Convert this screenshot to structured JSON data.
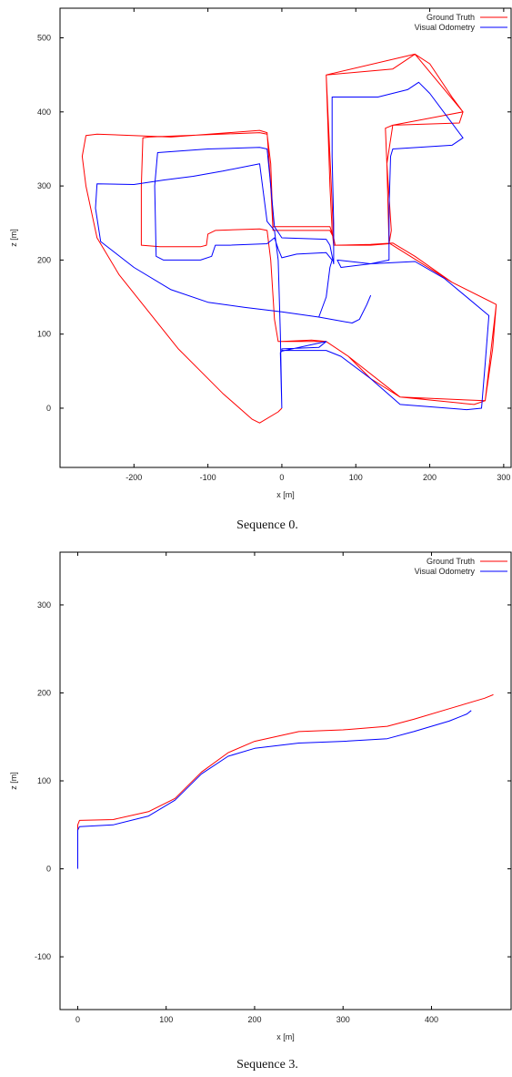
{
  "chart_data": [
    {
      "type": "line",
      "xlabel": "x [m]",
      "ylabel": "z [m]",
      "xlim": [
        -300,
        310
      ],
      "ylim": [
        -80,
        540
      ],
      "xticks": [
        -200,
        -100,
        0,
        100,
        200,
        300
      ],
      "yticks": [
        0,
        100,
        200,
        300,
        400,
        500
      ],
      "legend_position": "top-right",
      "caption": "Sequence 0.",
      "series": [
        {
          "name": "Ground Truth",
          "color": "#ff0000",
          "points": [
            [
              0,
              0
            ],
            [
              -5,
              -5
            ],
            [
              -30,
              -20
            ],
            [
              -40,
              -15
            ],
            [
              -80,
              20
            ],
            [
              -140,
              80
            ],
            [
              -180,
              130
            ],
            [
              -220,
              180
            ],
            [
              -250,
              230
            ],
            [
              -265,
              300
            ],
            [
              -270,
              340
            ],
            [
              -265,
              368
            ],
            [
              -250,
              370
            ],
            [
              -150,
              366
            ],
            [
              -30,
              375
            ],
            [
              -20,
              372
            ],
            [
              -15,
              300
            ],
            [
              -12,
              240
            ],
            [
              0,
              240
            ],
            [
              60,
              240
            ],
            [
              65,
              240
            ],
            [
              70,
              230
            ],
            [
              72,
              220
            ],
            [
              120,
              221
            ],
            [
              150,
              223
            ],
            [
              180,
              205
            ],
            [
              230,
              170
            ],
            [
              280,
              145
            ],
            [
              290,
              140
            ],
            [
              285,
              80
            ],
            [
              275,
              10
            ],
            [
              260,
              5
            ],
            [
              160,
              15
            ],
            [
              120,
              40
            ],
            [
              90,
              70
            ],
            [
              60,
              90
            ],
            [
              40,
              92
            ],
            [
              0,
              90
            ],
            [
              -5,
              90
            ],
            [
              -10,
              120
            ],
            [
              -15,
              200
            ],
            [
              -20,
              240
            ],
            [
              -30,
              242
            ],
            [
              -90,
              240
            ],
            [
              -100,
              235
            ],
            [
              -102,
              220
            ],
            [
              -110,
              218
            ],
            [
              -165,
              218
            ],
            [
              -190,
              220
            ],
            [
              -190,
              300
            ],
            [
              -188,
              365
            ],
            [
              -180,
              366
            ],
            [
              -30,
              372
            ],
            [
              -20,
              370
            ],
            [
              -15,
              330
            ],
            [
              -12,
              245
            ],
            [
              50,
              245
            ],
            [
              65,
              245
            ],
            [
              70,
              230
            ],
            [
              60,
              450
            ],
            [
              150,
              458
            ],
            [
              180,
              478
            ],
            [
              200,
              465
            ],
            [
              230,
              420
            ],
            [
              245,
              400
            ],
            [
              240,
              385
            ],
            [
              150,
              382
            ],
            [
              140,
              378
            ],
            [
              142,
              330
            ],
            [
              148,
              240
            ],
            [
              145,
              222
            ],
            [
              120,
              220
            ],
            [
              70,
              220
            ],
            [
              68,
              240
            ],
            [
              65,
              300
            ],
            [
              60,
              450
            ],
            [
              180,
              478
            ],
            [
              245,
              400
            ],
            [
              150,
              382
            ],
            [
              142,
              330
            ],
            [
              145,
              223
            ],
            [
              230,
              170
            ],
            [
              290,
              140
            ],
            [
              275,
              10
            ],
            [
              160,
              15
            ],
            [
              90,
              70
            ],
            [
              60,
              90
            ],
            [
              0,
              90
            ]
          ]
        },
        {
          "name": "Visual Odometry",
          "color": "#0000ff",
          "points": [
            [
              0,
              0
            ],
            [
              -2,
              100
            ],
            [
              -5,
              200
            ],
            [
              -10,
              240
            ],
            [
              -20,
              252
            ],
            [
              -30,
              330
            ],
            [
              -80,
              320
            ],
            [
              -120,
              313
            ],
            [
              -160,
              308
            ],
            [
              -200,
              302
            ],
            [
              -250,
              303
            ],
            [
              -252,
              270
            ],
            [
              -245,
              225
            ],
            [
              -200,
              190
            ],
            [
              -150,
              160
            ],
            [
              -100,
              143
            ],
            [
              -50,
              136
            ],
            [
              0,
              130
            ],
            [
              50,
              123
            ],
            [
              95,
              115
            ],
            [
              105,
              120
            ],
            [
              115,
              140
            ],
            [
              120,
              152
            ],
            [
              115,
              140
            ],
            [
              105,
              120
            ],
            [
              95,
              115
            ],
            [
              50,
              123
            ],
            [
              60,
              150
            ],
            [
              65,
              190
            ],
            [
              68,
              200
            ],
            [
              60,
              210
            ],
            [
              20,
              208
            ],
            [
              0,
              203
            ],
            [
              -5,
              215
            ],
            [
              -10,
              230
            ],
            [
              -20,
              222
            ],
            [
              -70,
              220
            ],
            [
              -90,
              220
            ],
            [
              -95,
              205
            ],
            [
              -110,
              200
            ],
            [
              -160,
              200
            ],
            [
              -170,
              205
            ],
            [
              -172,
              300
            ],
            [
              -168,
              345
            ],
            [
              -100,
              350
            ],
            [
              -30,
              352
            ],
            [
              -20,
              350
            ],
            [
              -15,
              300
            ],
            [
              -10,
              245
            ],
            [
              0,
              230
            ],
            [
              60,
              228
            ],
            [
              65,
              220
            ],
            [
              70,
              195
            ],
            [
              70,
              250
            ],
            [
              68,
              340
            ],
            [
              68,
              420
            ],
            [
              130,
              420
            ],
            [
              170,
              430
            ],
            [
              185,
              440
            ],
            [
              200,
              425
            ],
            [
              245,
              365
            ],
            [
              230,
              355
            ],
            [
              150,
              350
            ],
            [
              147,
              340
            ],
            [
              145,
              270
            ],
            [
              145,
              200
            ],
            [
              120,
              195
            ],
            [
              80,
              190
            ],
            [
              75,
              200
            ],
            [
              120,
              195
            ],
            [
              180,
              198
            ],
            [
              220,
              175
            ],
            [
              280,
              125
            ],
            [
              275,
              60
            ],
            [
              270,
              0
            ],
            [
              250,
              -2
            ],
            [
              160,
              5
            ],
            [
              120,
              40
            ],
            [
              80,
              70
            ],
            [
              60,
              78
            ],
            [
              0,
              78
            ],
            [
              0,
              80
            ],
            [
              50,
              82
            ],
            [
              60,
              90
            ],
            [
              0,
              77
            ],
            [
              -2,
              75
            ],
            [
              0,
              0
            ]
          ]
        }
      ]
    },
    {
      "type": "line",
      "xlabel": "x [m]",
      "ylabel": "z [m]",
      "xlim": [
        -20,
        490
      ],
      "ylim": [
        -160,
        360
      ],
      "xticks": [
        0,
        100,
        200,
        300,
        400
      ],
      "yticks": [
        -100,
        0,
        100,
        200,
        300
      ],
      "legend_position": "top-right",
      "caption": "Sequence 3.",
      "series": [
        {
          "name": "Ground Truth",
          "color": "#ff0000",
          "points": [
            [
              0,
              30
            ],
            [
              0,
              50
            ],
            [
              2,
              55
            ],
            [
              40,
              56
            ],
            [
              80,
              65
            ],
            [
              110,
              80
            ],
            [
              140,
              110
            ],
            [
              170,
              132
            ],
            [
              200,
              145
            ],
            [
              250,
              156
            ],
            [
              300,
              158
            ],
            [
              350,
              162
            ],
            [
              380,
              170
            ],
            [
              420,
              182
            ],
            [
              460,
              194
            ],
            [
              470,
              198
            ]
          ]
        },
        {
          "name": "Visual Odometry",
          "color": "#0000ff",
          "points": [
            [
              0,
              0
            ],
            [
              0,
              30
            ],
            [
              0,
              44
            ],
            [
              2,
              48
            ],
            [
              40,
              50
            ],
            [
              80,
              60
            ],
            [
              110,
              78
            ],
            [
              140,
              108
            ],
            [
              170,
              128
            ],
            [
              200,
              137
            ],
            [
              250,
              143
            ],
            [
              300,
              145
            ],
            [
              350,
              148
            ],
            [
              380,
              156
            ],
            [
              420,
              168
            ],
            [
              440,
              176
            ],
            [
              445,
              180
            ]
          ]
        }
      ]
    }
  ]
}
